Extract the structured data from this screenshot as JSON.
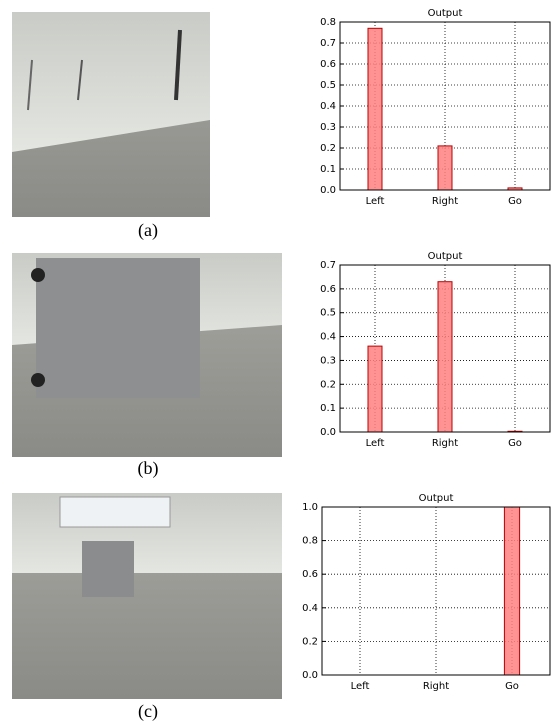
{
  "chart_data": [
    {
      "type": "bar",
      "title": "Output",
      "categories": [
        "Left",
        "Right",
        "Go"
      ],
      "values": [
        0.77,
        0.21,
        0.01
      ],
      "color": "#ff7f7f",
      "ylim": [
        0,
        0.8
      ],
      "yticks": [
        {
          "value": 0,
          "label": "0.0"
        },
        0.1,
        0.2,
        0.3,
        0.4,
        0.5,
        0.6,
        0.7,
        0.8
      ],
      "grid": true
    },
    {
      "type": "bar",
      "title": "Output",
      "categories": [
        "Left",
        "Right",
        "Go"
      ],
      "values": [
        0.36,
        0.63,
        0.003
      ],
      "color": "#ff7f7f",
      "ylim": [
        0,
        0.7
      ],
      "yticks": [
        {
          "value": 0,
          "label": "0.0"
        },
        0.1,
        0.2,
        0.3,
        0.4,
        0.5,
        0.6,
        0.7
      ],
      "grid": true
    },
    {
      "type": "bar",
      "title": "Output",
      "categories": [
        "Left",
        "Right",
        "Go"
      ],
      "values": [
        0,
        0,
        1.0
      ],
      "color": "#ff7f7f",
      "ylim": [
        0,
        1.0
      ],
      "yticks": [
        {
          "value": 0,
          "label": "0.0"
        },
        0.2,
        0.4,
        0.6,
        0.8,
        {
          "value": 1.0,
          "label": "1.0"
        }
      ],
      "grid": true
    }
  ],
  "captions": [
    "(a)",
    "(b)",
    "(c)"
  ]
}
